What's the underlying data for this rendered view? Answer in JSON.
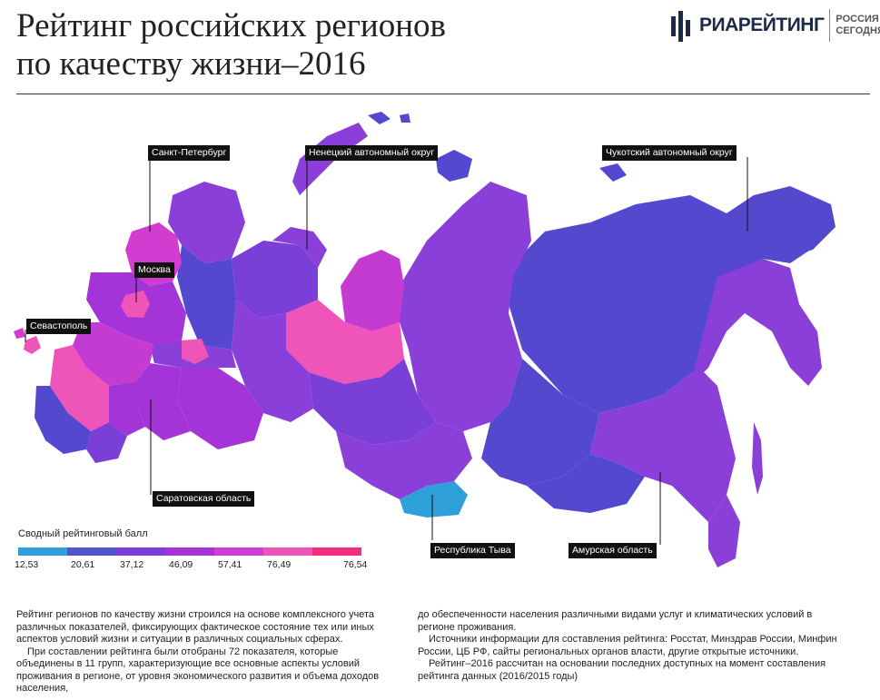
{
  "title": {
    "line1": "Рейтинг российских регионов",
    "line2": "по качеству жизни–2016"
  },
  "logo": {
    "brand_ria": "РИА",
    "brand_rating": "РЕЙТИНГ",
    "partner_line1": "РОССИЯ",
    "partner_line2": "СЕГОДНЯ"
  },
  "map_labels": {
    "spb": "Санкт-Петербург",
    "nenets": "Ненецкий автономный округ",
    "chukotka": "Чукотский автономный округ",
    "moscow": "Москва",
    "sevastopol": "Севастополь",
    "saratov": "Саратовская область",
    "tyva": "Республика Тыва",
    "amur": "Амурская область"
  },
  "legend": {
    "title": "Сводный рейтинговый балл",
    "colors": [
      "#2e9fd8",
      "#4f56c9",
      "#7a3fd6",
      "#a534d8",
      "#d23cd0",
      "#ef54b8",
      "#f02d7e"
    ],
    "ticks": [
      "12,53",
      "20,61",
      "37,12",
      "46,09",
      "57,41",
      "76,49",
      "76,54"
    ]
  },
  "colors": {
    "tyva": "#2e9fd8",
    "blue_violet": "#4f56c9",
    "violet": "#7a3fd6",
    "purple": "#a534d8",
    "magenta": "#d23cd0",
    "pink": "#ef54b8"
  },
  "body_text": {
    "col1": [
      "Рейтинг регионов по качеству жизни строился на основе комплексного учета различных показателей, фиксирующих фактическое состояние тех или иных аспектов условий жизни и ситуации в различных социальных сферах.",
      "При составлении рейтинга были отобраны 72 показателя, которые объединены в 11 групп, характеризующие все основные аспекты условий проживания в регионе, от уровня экономического развития и объема доходов населения,"
    ],
    "col2": [
      "до обеспеченности населения различными видами услуг и климатических условий в регионе проживания.",
      "Источники информации для составления рейтинга: Росстат, Минздрав России, Минфин России, ЦБ РФ, сайты региональных органов власти, другие открытые источники.",
      "Рейтинг–2016 рассчитан на основании последних доступных на момент составления рейтинга данных (2016/2015 годы)"
    ]
  }
}
